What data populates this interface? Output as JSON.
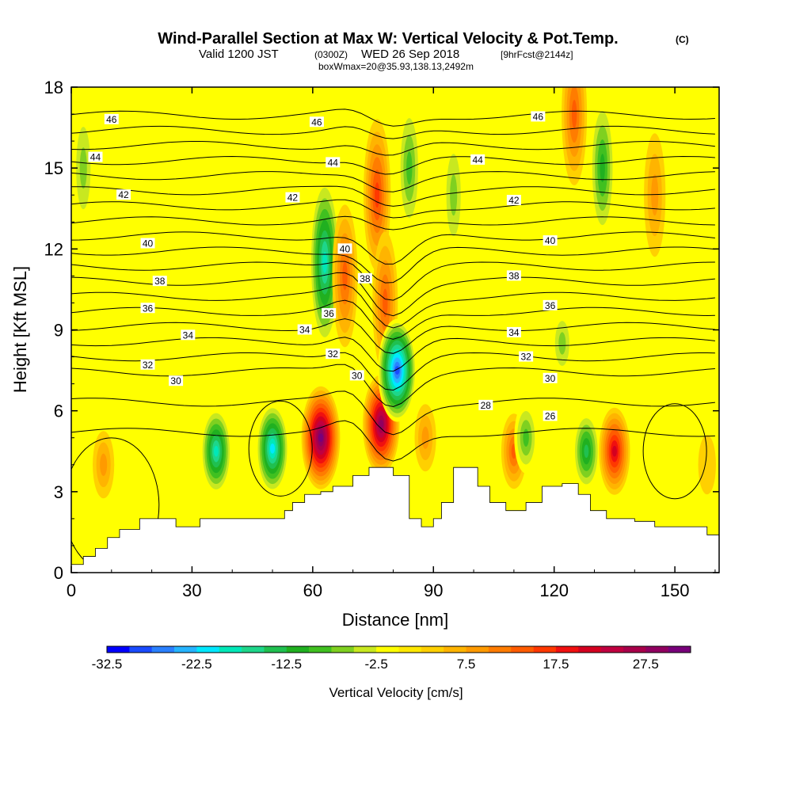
{
  "title": "Wind-Parallel Section at Max W: Vertical Velocity & Pot.Temp.",
  "copyright": "(C)",
  "subtitle_valid": "Valid 1200 JST",
  "subtitle_utc": "(0300Z)",
  "subtitle_date": "WED 26 Sep 2018",
  "subtitle_fcst": "[9hrFcst@2144z]",
  "subtitle2": "boxWmax=20@35.93,138.13,2492m",
  "colorbar_label": "Vertical Velocity [cm/s]",
  "colors": {
    "background_field": "#ffff00",
    "terrain": "#ffffff",
    "contour": "#000000"
  },
  "chart_data": {
    "type": "heatmap",
    "xlabel": "Distance [nm]",
    "ylabel": "Height [Kft MSL]",
    "xlim": [
      0,
      161
    ],
    "ylim": [
      0,
      18
    ],
    "x_ticks": [
      "0",
      "30",
      "60",
      "90",
      "120",
      "150"
    ],
    "y_ticks": [
      "0",
      "3",
      "6",
      "9",
      "12",
      "15",
      "18"
    ],
    "colorbar": {
      "levels": [
        -32.5,
        -30,
        -27.5,
        -25,
        -22.5,
        -20,
        -17.5,
        -15,
        -12.5,
        -10,
        -7.5,
        -5,
        -2.5,
        0,
        2.5,
        5,
        7.5,
        10,
        12.5,
        15,
        17.5,
        20,
        22.5,
        25,
        27.5,
        30,
        32.5
      ],
      "tick_labels": [
        "-32.5",
        "-22.5",
        "-12.5",
        "-2.5",
        "7.5",
        "17.5",
        "27.5"
      ],
      "colors": [
        "#0000ff",
        "#1a4bff",
        "#2a80ff",
        "#26b4ff",
        "#00e8ff",
        "#00e8b8",
        "#1ed68a",
        "#20c050",
        "#20b020",
        "#40c020",
        "#7fd020",
        "#c8e820",
        "#ffff00",
        "#ffe800",
        "#ffd000",
        "#ffb400",
        "#ff9a00",
        "#ff7c00",
        "#ff5c00",
        "#ff3800",
        "#f01010",
        "#d40020",
        "#c00040",
        "#a8004a",
        "#900060",
        "#78007a"
      ]
    },
    "vertical_velocity_features": [
      {
        "x": 3,
        "y": 15,
        "value": -7.5
      },
      {
        "x": 8,
        "y": 4,
        "value": 7.5
      },
      {
        "x": 16,
        "y": 11,
        "value": -2.5
      },
      {
        "x": 36,
        "y": 4.5,
        "value": -20
      },
      {
        "x": 50,
        "y": 4.6,
        "value": -22.5
      },
      {
        "x": 62,
        "y": 5,
        "value": 30
      },
      {
        "x": 63,
        "y": 11.5,
        "value": -20
      },
      {
        "x": 68,
        "y": 11,
        "value": 12.5
      },
      {
        "x": 77,
        "y": 5.5,
        "value": 27.5
      },
      {
        "x": 76,
        "y": 14,
        "value": 15
      },
      {
        "x": 78,
        "y": 10,
        "value": 12.5
      },
      {
        "x": 81,
        "y": 7.5,
        "value": -30
      },
      {
        "x": 84,
        "y": 15,
        "value": -10
      },
      {
        "x": 88,
        "y": 5,
        "value": 7.5
      },
      {
        "x": 95,
        "y": 14,
        "value": -7.5
      },
      {
        "x": 110,
        "y": 4.5,
        "value": 12.5
      },
      {
        "x": 113,
        "y": 5,
        "value": -10
      },
      {
        "x": 122,
        "y": 8.5,
        "value": -7.5
      },
      {
        "x": 125,
        "y": 17,
        "value": 12.5
      },
      {
        "x": 128,
        "y": 4.5,
        "value": -15
      },
      {
        "x": 132,
        "y": 15,
        "value": -12.5
      },
      {
        "x": 135,
        "y": 4.5,
        "value": 20
      },
      {
        "x": 145,
        "y": 14,
        "value": 7.5
      },
      {
        "x": 158,
        "y": 4,
        "value": 2.5
      }
    ],
    "terrain_height": [
      [
        0,
        0.3
      ],
      [
        3,
        0.6
      ],
      [
        6,
        0.9
      ],
      [
        9,
        1.3
      ],
      [
        12,
        1.6
      ],
      [
        17,
        2.0
      ],
      [
        26,
        1.7
      ],
      [
        32,
        2.0
      ],
      [
        45,
        2.0
      ],
      [
        53,
        2.3
      ],
      [
        55,
        2.6
      ],
      [
        58,
        2.9
      ],
      [
        62,
        3.0
      ],
      [
        65,
        3.2
      ],
      [
        70,
        3.6
      ],
      [
        74,
        3.9
      ],
      [
        76,
        3.9
      ],
      [
        80,
        3.6
      ],
      [
        84,
        2.0
      ],
      [
        87,
        1.7
      ],
      [
        90,
        2.0
      ],
      [
        92,
        2.6
      ],
      [
        95,
        3.9
      ],
      [
        98,
        3.9
      ],
      [
        101,
        3.2
      ],
      [
        104,
        2.6
      ],
      [
        108,
        2.3
      ],
      [
        113,
        2.6
      ],
      [
        117,
        3.2
      ],
      [
        122,
        3.3
      ],
      [
        126,
        2.9
      ],
      [
        129,
        2.3
      ],
      [
        133,
        2.0
      ],
      [
        140,
        1.9
      ],
      [
        145,
        1.7
      ],
      [
        152,
        1.7
      ],
      [
        158,
        1.4
      ],
      [
        161,
        1.4
      ]
    ],
    "potential_temperature_labels": [
      {
        "value": "46",
        "x": 10,
        "y": 16.8
      },
      {
        "value": "46",
        "x": 61,
        "y": 16.7
      },
      {
        "value": "46",
        "x": 116,
        "y": 16.9
      },
      {
        "value": "44",
        "x": 6,
        "y": 15.4
      },
      {
        "value": "44",
        "x": 65,
        "y": 15.2
      },
      {
        "value": "44",
        "x": 101,
        "y": 15.3
      },
      {
        "value": "42",
        "x": 13,
        "y": 14.0
      },
      {
        "value": "42",
        "x": 55,
        "y": 13.9
      },
      {
        "value": "42",
        "x": 110,
        "y": 13.8
      },
      {
        "value": "40",
        "x": 19,
        "y": 12.2
      },
      {
        "value": "40",
        "x": 68,
        "y": 12.0
      },
      {
        "value": "40",
        "x": 119,
        "y": 12.3
      },
      {
        "value": "38",
        "x": 22,
        "y": 10.8
      },
      {
        "value": "38",
        "x": 73,
        "y": 10.9
      },
      {
        "value": "38",
        "x": 110,
        "y": 11.0
      },
      {
        "value": "36",
        "x": 19,
        "y": 9.8
      },
      {
        "value": "36",
        "x": 64,
        "y": 9.6
      },
      {
        "value": "36",
        "x": 119,
        "y": 9.9
      },
      {
        "value": "34",
        "x": 29,
        "y": 8.8
      },
      {
        "value": "34",
        "x": 58,
        "y": 9.0
      },
      {
        "value": "34",
        "x": 110,
        "y": 8.9
      },
      {
        "value": "32",
        "x": 19,
        "y": 7.7
      },
      {
        "value": "32",
        "x": 65,
        "y": 8.1
      },
      {
        "value": "32",
        "x": 113,
        "y": 8.0
      },
      {
        "value": "30",
        "x": 26,
        "y": 7.1
      },
      {
        "value": "30",
        "x": 71,
        "y": 7.3
      },
      {
        "value": "30",
        "x": 119,
        "y": 7.2
      },
      {
        "value": "28",
        "x": 103,
        "y": 6.2
      },
      {
        "value": "26",
        "x": 119,
        "y": 5.8
      }
    ],
    "potential_temperature_levels": [
      26,
      28,
      30,
      31,
      32,
      33,
      34,
      35,
      36,
      37,
      38,
      39,
      40,
      41,
      42,
      43,
      44,
      45,
      46,
      47
    ]
  }
}
